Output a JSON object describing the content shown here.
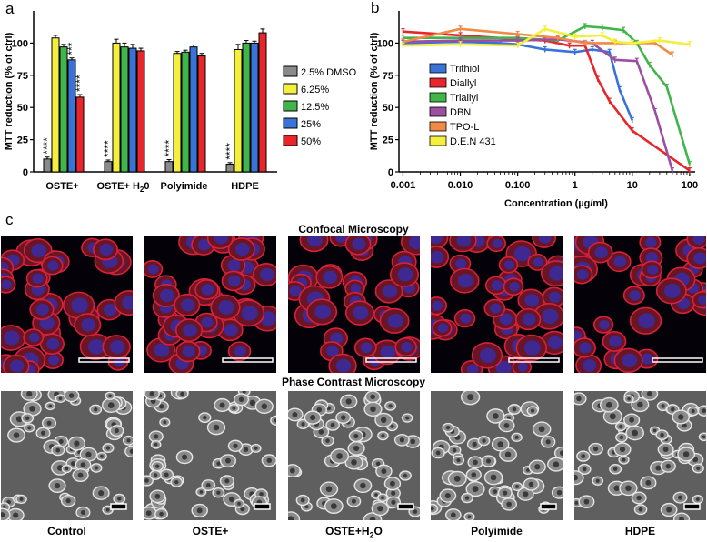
{
  "panels": {
    "a": "a",
    "b": "b",
    "c": "c"
  },
  "chart_data": [
    {
      "type": "bar",
      "ylabel": "MTT reduction (% of ctrl)",
      "ylim": [
        0,
        125
      ],
      "yticks": [
        0,
        25,
        50,
        75,
        100
      ],
      "categories": [
        "OSTE+",
        "OSTE+ H2O",
        "Polyimide",
        "HDPE"
      ],
      "legend_position": "right",
      "series": [
        {
          "name": "2.5% DMSO",
          "color": "#8a8a8a",
          "values": [
            10,
            8,
            8,
            6
          ],
          "errors": [
            1.5,
            1.2,
            1.5,
            1.2
          ],
          "labels": [
            "****",
            "****",
            "****",
            "****"
          ]
        },
        {
          "name": "6.25%",
          "color": "#f4ee3c",
          "values": [
            104,
            100,
            92,
            95
          ],
          "errors": [
            2,
            3,
            1.5,
            4
          ],
          "labels": [
            "",
            "",
            "",
            ""
          ]
        },
        {
          "name": "12.5%",
          "color": "#3fb54a",
          "values": [
            97,
            97,
            93,
            100
          ],
          "errors": [
            2,
            3,
            1.5,
            2
          ],
          "labels": [
            "",
            "",
            "",
            ""
          ]
        },
        {
          "name": "25%",
          "color": "#3a73d8",
          "values": [
            87,
            96,
            97,
            100
          ],
          "errors": [
            1.5,
            3,
            1.5,
            1.5
          ],
          "labels": [
            "***",
            "",
            "",
            ""
          ]
        },
        {
          "name": "50%",
          "color": "#e8252b",
          "values": [
            58,
            94,
            90,
            108
          ],
          "errors": [
            2,
            2,
            2,
            3
          ],
          "labels": [
            "****",
            "",
            "",
            ""
          ]
        }
      ]
    },
    {
      "type": "line",
      "xscale": "log",
      "xlabel": "Concentration (µg/ml)",
      "ylabel": "MTT reduction (% of ctrl)",
      "ylim": [
        0,
        125
      ],
      "yticks": [
        0,
        25,
        50,
        75,
        100
      ],
      "xticks": [
        {
          "value": 0.001,
          "label": "0.001"
        },
        {
          "value": 0.01,
          "label": "0.010"
        },
        {
          "value": 0.1,
          "label": "0.100"
        },
        {
          "value": 1,
          "label": "1"
        },
        {
          "value": 10,
          "label": "10"
        },
        {
          "value": 100,
          "label": "100"
        }
      ],
      "xlim": [
        0.00085,
        125
      ],
      "legend_position": "left",
      "series": [
        {
          "name": "Trithiol",
          "color": "#3a73d8",
          "points": [
            [
              0.001,
              100
            ],
            [
              0.01,
              101
            ],
            [
              0.05,
              100
            ],
            [
              0.1,
              99
            ],
            [
              0.3,
              95
            ],
            [
              1,
              93
            ],
            [
              2,
              95
            ],
            [
              4,
              93
            ],
            [
              6,
              64
            ],
            [
              10,
              40
            ]
          ]
        },
        {
          "name": "Diallyl",
          "color": "#e8252b",
          "points": [
            [
              0.001,
              109
            ],
            [
              0.01,
              106
            ],
            [
              0.1,
              103
            ],
            [
              0.3,
              102
            ],
            [
              0.8,
              98
            ],
            [
              1.5,
              98
            ],
            [
              2.5,
              72
            ],
            [
              4,
              55
            ],
            [
              10,
              32
            ],
            [
              100,
              1
            ]
          ]
        },
        {
          "name": "Triallyl",
          "color": "#3fb54a",
          "points": [
            [
              0.001,
              104
            ],
            [
              0.01,
              104
            ],
            [
              0.1,
              104
            ],
            [
              0.5,
              102
            ],
            [
              1.5,
              113
            ],
            [
              3,
              112
            ],
            [
              7,
              110
            ],
            [
              12,
              100
            ],
            [
              20,
              83
            ],
            [
              40,
              66
            ],
            [
              100,
              6
            ]
          ]
        },
        {
          "name": "DBN",
          "color": "#9b4fa0",
          "points": [
            [
              0.001,
              101
            ],
            [
              0.01,
              102
            ],
            [
              0.1,
              102
            ],
            [
              0.5,
              103
            ],
            [
              2,
              100
            ],
            [
              5,
              87
            ],
            [
              12,
              86
            ],
            [
              25,
              47
            ],
            [
              50,
              1
            ]
          ]
        },
        {
          "name": "TPO-L",
          "color": "#f08a45",
          "points": [
            [
              0.001,
              101
            ],
            [
              0.01,
              111
            ],
            [
              0.1,
              107
            ],
            [
              0.5,
              104
            ],
            [
              1.5,
              100
            ],
            [
              5,
              100
            ],
            [
              10,
              100
            ],
            [
              25,
              100
            ],
            [
              50,
              91
            ]
          ]
        },
        {
          "name": "D.E.N 431",
          "color": "#f4ee3c",
          "points": [
            [
              0.001,
              98
            ],
            [
              0.01,
              99
            ],
            [
              0.1,
              98
            ],
            [
              0.3,
              111
            ],
            [
              1,
              105
            ],
            [
              3,
              106
            ],
            [
              5,
              101
            ],
            [
              10,
              100
            ],
            [
              30,
              102
            ],
            [
              100,
              99
            ]
          ]
        }
      ]
    }
  ],
  "images": {
    "confocal_title": "Confocal Microscopy",
    "phase_title": "Phase Contrast Microscopy",
    "captions": [
      "Control",
      "OSTE+",
      "OSTE+H",
      "Polyimide",
      "HDPE"
    ],
    "caption_subscript": "2",
    "caption_suffix": "O"
  },
  "category_b": {
    "base": "OSTE+ H",
    "sub": "2",
    "suffix": "0"
  }
}
